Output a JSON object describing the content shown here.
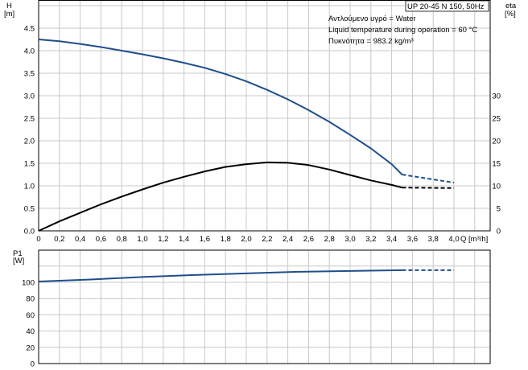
{
  "chart_data": [
    {
      "type": "line",
      "panel": "head-efficiency",
      "title": "UP 20-45 N 150, 50Hz",
      "annotations": [
        "Αντλούμενο υγρό = Water",
        "Liquid temperature during operation = 60 °C",
        "Πυκνότητα = 983.2 kg/m³"
      ],
      "ylabel": "H",
      "yunit": "[m]",
      "y2label": "eta",
      "y2unit": "[%]",
      "xlim": [
        0,
        4.0
      ],
      "ylim": [
        0,
        5.0
      ],
      "y2lim": [
        0,
        35
      ],
      "grid": true,
      "xticks": [
        "0",
        "0,2",
        "0,4",
        "0,6",
        "0,8",
        "1,0",
        "1,2",
        "1,4",
        "1,6",
        "1,8",
        "2,0",
        "2,2",
        "2,4",
        "2,6",
        "2,8",
        "3,0",
        "3,2",
        "3,4",
        "3,6",
        "3,8",
        "4,0"
      ],
      "xlabel": "Q [m³/h]",
      "yticks": [
        "0.0",
        "0.5",
        "1.0",
        "1.5",
        "2.0",
        "2.5",
        "3.0",
        "3.5",
        "4.0",
        "4.5"
      ],
      "y2ticks": [
        "0",
        "5",
        "10",
        "15",
        "20",
        "25",
        "30"
      ],
      "series": [
        {
          "axis": "left",
          "color": "#1f4e8c",
          "x": [
            0,
            0.2,
            0.4,
            0.6,
            0.8,
            1.0,
            1.2,
            1.4,
            1.6,
            1.8,
            2.0,
            2.2,
            2.4,
            2.6,
            2.8,
            3.0,
            3.2,
            3.4,
            3.5
          ],
          "values": [
            4.25,
            4.21,
            4.15,
            4.08,
            4.0,
            3.92,
            3.83,
            3.73,
            3.62,
            3.48,
            3.32,
            3.13,
            2.92,
            2.68,
            2.42,
            2.13,
            1.83,
            1.48,
            1.25
          ],
          "extension_x": [
            3.5,
            4.0
          ],
          "extension_values": [
            1.25,
            1.07
          ]
        },
        {
          "axis": "right",
          "color": "#000000",
          "x": [
            0,
            0.2,
            0.4,
            0.6,
            0.8,
            1.0,
            1.2,
            1.4,
            1.6,
            1.8,
            2.0,
            2.2,
            2.4,
            2.6,
            2.8,
            3.0,
            3.2,
            3.4,
            3.5
          ],
          "values": [
            0,
            2.1,
            4.0,
            5.9,
            7.6,
            9.2,
            10.7,
            12.0,
            13.2,
            14.2,
            14.8,
            15.2,
            15.1,
            14.6,
            13.6,
            12.4,
            11.2,
            10.2,
            9.6
          ],
          "extension_x": [
            3.5,
            4.0
          ],
          "extension_values": [
            9.6,
            9.5
          ]
        }
      ]
    },
    {
      "type": "line",
      "panel": "power",
      "ylabel": "P1",
      "yunit": "[W]",
      "xlim": [
        0,
        4.0
      ],
      "ylim": [
        0,
        130
      ],
      "grid": true,
      "yticks": [
        "0",
        "20",
        "40",
        "60",
        "80",
        "100"
      ],
      "series": [
        {
          "color": "#1f4e8c",
          "x": [
            0,
            0.5,
            1.0,
            1.5,
            2.0,
            2.5,
            3.0,
            3.5
          ],
          "values": [
            101,
            103.5,
            106.5,
            109,
            111,
            113,
            114,
            115
          ],
          "extension_x": [
            3.5,
            4.0
          ],
          "extension_values": [
            115,
            115
          ]
        }
      ]
    }
  ]
}
